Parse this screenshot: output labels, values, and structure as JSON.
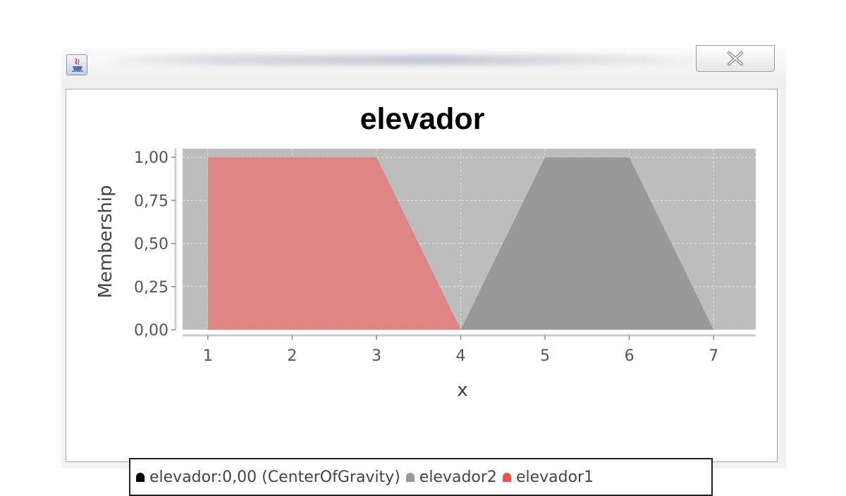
{
  "window": {
    "close_icon": "close-x-icon",
    "app_icon": "java-icon"
  },
  "chart_data": {
    "type": "area",
    "title": "elevador",
    "xlabel": "x",
    "ylabel": "Membership",
    "xlim": [
      0.7,
      7.5
    ],
    "ylim": [
      0,
      1.05
    ],
    "x_ticks": [
      {
        "value": 1,
        "label": "1"
      },
      {
        "value": 2,
        "label": "2"
      },
      {
        "value": 3,
        "label": "3"
      },
      {
        "value": 4,
        "label": "4"
      },
      {
        "value": 5,
        "label": "5"
      },
      {
        "value": 6,
        "label": "6"
      },
      {
        "value": 7,
        "label": "7"
      }
    ],
    "y_ticks": [
      {
        "value": 0,
        "label": "0,00"
      },
      {
        "value": 0.25,
        "label": "0,25"
      },
      {
        "value": 0.5,
        "label": "0,50"
      },
      {
        "value": 0.75,
        "label": "0,75"
      },
      {
        "value": 1,
        "label": "1,00"
      }
    ],
    "grid": true,
    "legend_position": "bottom",
    "background_color": "#bdbdbd",
    "series": [
      {
        "name": "elevador:0,00 (CenterOfGravity)",
        "color": "#000000",
        "points": []
      },
      {
        "name": "elevador2",
        "color": "#999999",
        "points": [
          [
            4,
            0
          ],
          [
            5,
            1
          ],
          [
            6,
            1
          ],
          [
            7,
            0
          ]
        ]
      },
      {
        "name": "elevador1",
        "color": "#de8484",
        "legend_color": "#f05050",
        "points": [
          [
            1,
            0
          ],
          [
            1,
            1
          ],
          [
            3,
            1
          ],
          [
            4,
            0
          ]
        ]
      }
    ]
  }
}
